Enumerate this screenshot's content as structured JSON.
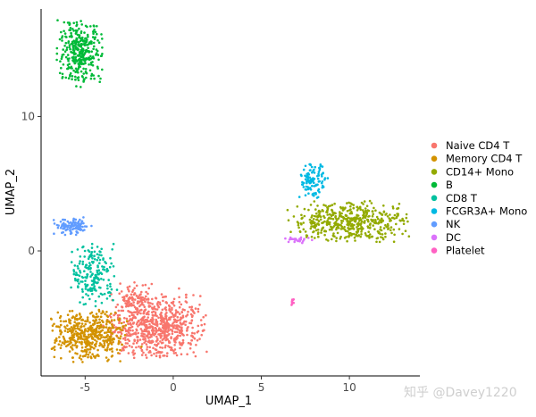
{
  "chart_data": {
    "type": "scatter",
    "xlabel": "UMAP_1",
    "ylabel": "UMAP_2",
    "xlim": [
      -7.5,
      14
    ],
    "ylim": [
      -9.3,
      18
    ],
    "x_ticks": [
      -5,
      0,
      5,
      10
    ],
    "y_ticks": [
      0,
      10
    ],
    "grid": false,
    "legend_position": "right",
    "series": [
      {
        "name": "Naive CD4 T",
        "color": "#F8766D",
        "clusters": [
          {
            "cx": -1.0,
            "cy": -5.6,
            "sx": 1.3,
            "sy": 1.1,
            "n": 700
          },
          {
            "cx": -2.2,
            "cy": -3.6,
            "sx": 0.5,
            "sy": 0.6,
            "n": 80
          }
        ]
      },
      {
        "name": "Memory CD4 T",
        "color": "#D39200",
        "clusters": [
          {
            "cx": -4.8,
            "cy": -6.3,
            "sx": 1.0,
            "sy": 0.9,
            "n": 480
          }
        ]
      },
      {
        "name": "CD14+ Mono",
        "color": "#93AA00",
        "clusters": [
          {
            "cx": 10.0,
            "cy": 2.2,
            "sx": 1.6,
            "sy": 0.7,
            "n": 480
          }
        ]
      },
      {
        "name": "B",
        "color": "#00BA38",
        "clusters": [
          {
            "cx": -5.3,
            "cy": 14.8,
            "sx": 0.6,
            "sy": 1.1,
            "n": 340
          }
        ]
      },
      {
        "name": "CD8 T",
        "color": "#00C19F",
        "clusters": [
          {
            "cx": -4.5,
            "cy": -1.8,
            "sx": 0.6,
            "sy": 1.1,
            "n": 200
          }
        ]
      },
      {
        "name": "FCGR3A+ Mono",
        "color": "#00B9E3",
        "clusters": [
          {
            "cx": 7.9,
            "cy": 5.2,
            "sx": 0.35,
            "sy": 0.6,
            "n": 110
          }
        ]
      },
      {
        "name": "NK",
        "color": "#619CFF",
        "clusters": [
          {
            "cx": -5.7,
            "cy": 1.8,
            "sx": 0.5,
            "sy": 0.3,
            "n": 110
          }
        ]
      },
      {
        "name": "DC",
        "color": "#DB72FB",
        "clusters": [
          {
            "cx": 7.0,
            "cy": 0.8,
            "sx": 0.35,
            "sy": 0.12,
            "n": 30
          }
        ]
      },
      {
        "name": "Platelet",
        "color": "#FF61C3",
        "clusters": [
          {
            "cx": 6.8,
            "cy": -3.8,
            "sx": 0.05,
            "sy": 0.12,
            "n": 10
          }
        ]
      }
    ]
  },
  "watermark": "知乎 @Davey1220"
}
